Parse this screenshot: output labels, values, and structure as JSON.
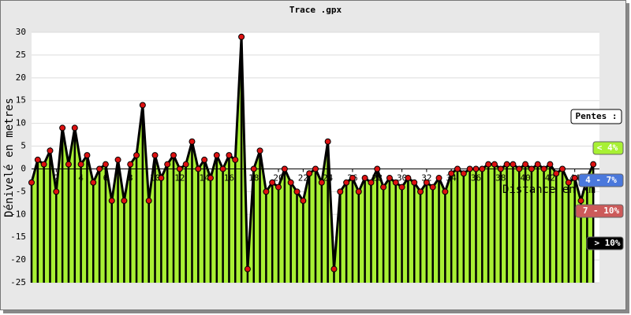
{
  "chart_data": {
    "type": "line",
    "title": "Trace .gpx",
    "x_label": "Distance en km",
    "y_label": "Dénivelé en metres",
    "x": [
      0,
      0.5,
      1,
      1.5,
      2,
      2.5,
      3,
      3.5,
      4,
      4.5,
      5,
      5.5,
      6,
      6.5,
      7,
      7.5,
      8,
      8.5,
      9,
      9.5,
      10,
      10.5,
      11,
      11.5,
      12,
      12.5,
      13,
      13.5,
      14,
      14.5,
      15,
      15.5,
      16,
      16.5,
      17,
      17.5,
      18,
      18.5,
      19,
      19.5,
      20,
      20.5,
      21,
      21.5,
      22,
      22.5,
      23,
      23.5,
      24,
      24.5,
      25,
      25.5,
      26,
      26.5,
      27,
      27.5,
      28,
      28.5,
      29,
      29.5,
      30,
      30.5,
      31,
      31.5,
      32,
      32.5,
      33,
      33.5,
      34,
      34.5,
      35,
      35.5,
      36,
      36.5,
      37,
      37.5,
      38,
      38.5,
      39,
      39.5,
      40,
      40.5,
      41,
      41.5,
      42,
      42.5,
      43,
      43.5,
      44,
      44.5,
      45,
      45.5
    ],
    "series": [
      {
        "name": "Dénivelé",
        "color": "#dd1111",
        "line_color": "#000000",
        "values": [
          -3,
          2,
          1,
          4,
          -5,
          9,
          1,
          9,
          1,
          3,
          -3,
          0,
          1,
          -7,
          2,
          -7,
          1,
          3,
          14,
          -7,
          3,
          -2,
          1,
          3,
          0,
          1,
          6,
          0,
          2,
          -2,
          3,
          0,
          3,
          2,
          29,
          -22,
          0,
          4,
          -5,
          -3,
          -4,
          0,
          -3,
          -5,
          -7,
          -1,
          0,
          -3,
          6,
          -22,
          -5,
          -3,
          -2,
          -5,
          -2,
          -3,
          0,
          -4,
          -2,
          -3,
          -4,
          -2,
          -3,
          -5,
          -3,
          -4,
          -2,
          -5,
          -1,
          0,
          -1,
          0,
          0,
          0,
          1,
          1,
          0,
          1,
          1,
          0,
          1,
          0,
          1,
          0,
          1,
          -1,
          0,
          -3,
          -2,
          -7,
          -2,
          1
        ]
      }
    ],
    "fill_color": "#a8f034",
    "xlim": [
      0,
      46
    ],
    "ylim": [
      -25,
      30
    ],
    "xticks": [
      2,
      4,
      6,
      8,
      10,
      12,
      14,
      16,
      18,
      20,
      22,
      24,
      26,
      28,
      30,
      32,
      34,
      36,
      38,
      40,
      42,
      44
    ],
    "yticks": [
      -25,
      -20,
      -15,
      -10,
      -5,
      0,
      5,
      10,
      15,
      20,
      25,
      30
    ],
    "grid": true,
    "legend": {
      "title": "Pentes :",
      "items": [
        {
          "label": "< 4%",
          "color": "#a8f034"
        },
        {
          "label": "4 - 7%",
          "color": "#4a78dc"
        },
        {
          "label": "7 - 10%",
          "color": "#cc5a5a"
        },
        {
          "label": "> 10%",
          "color": "#000000"
        }
      ]
    }
  }
}
